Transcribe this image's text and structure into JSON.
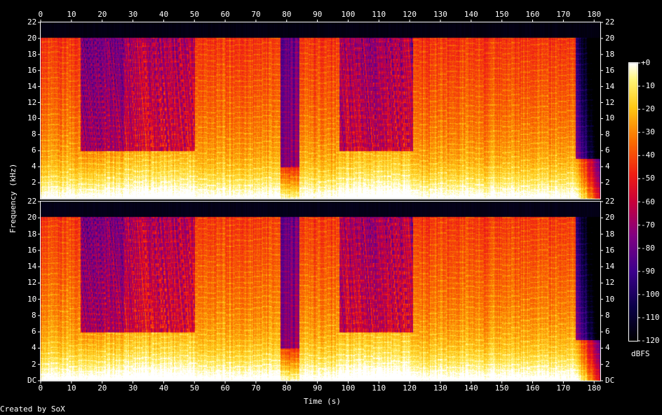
{
  "chart_data": {
    "type": "heatmap",
    "title": "",
    "xlabel": "Time (s)",
    "ylabel": "Frequency (kHz)",
    "colorbar_label": "dBFS",
    "xlim": [
      0,
      182
    ],
    "ylim_khz": [
      0,
      22
    ],
    "x_ticks": [
      0,
      10,
      20,
      30,
      40,
      50,
      60,
      70,
      80,
      90,
      100,
      110,
      120,
      130,
      140,
      150,
      160,
      170,
      180
    ],
    "y_ticks": [
      "DC",
      "2",
      "4",
      "6",
      "8",
      "10",
      "12",
      "14",
      "16",
      "18",
      "20",
      "22"
    ],
    "top_channel_y_ticks": [
      "2",
      "4",
      "6",
      "8",
      "10",
      "12",
      "14",
      "16",
      "18",
      "20",
      "22"
    ],
    "colorbar_ticks": [
      "+0",
      "-10",
      "-20",
      "-30",
      "-40",
      "-50",
      "-60",
      "-70",
      "-80",
      "-90",
      "-100",
      "-110",
      "-120"
    ],
    "colorbar_range_dbfs": [
      -120,
      0
    ],
    "channels": 2,
    "lowpass_cutoff_khz": 20,
    "sections": [
      {
        "t_start": 0,
        "t_end": 13,
        "character": "full band up to 20 kHz"
      },
      {
        "t_start": 13,
        "t_end": 27,
        "character": "sparse highs, energy mostly below 6 kHz"
      },
      {
        "t_start": 27,
        "t_end": 50,
        "character": "sparse highs, mid energy"
      },
      {
        "t_start": 50,
        "t_end": 78,
        "character": "full band up to 20 kHz"
      },
      {
        "t_start": 78,
        "t_end": 84,
        "character": "quiet gap"
      },
      {
        "t_start": 84,
        "t_end": 97,
        "character": "full band up to 20 kHz"
      },
      {
        "t_start": 97,
        "t_end": 121,
        "character": "sparse highs"
      },
      {
        "t_start": 121,
        "t_end": 174,
        "character": "full band up to 20 kHz"
      },
      {
        "t_start": 174,
        "t_end": 182,
        "character": "fade out, low energy"
      }
    ]
  },
  "footer": {
    "credit": "Created by SoX"
  }
}
